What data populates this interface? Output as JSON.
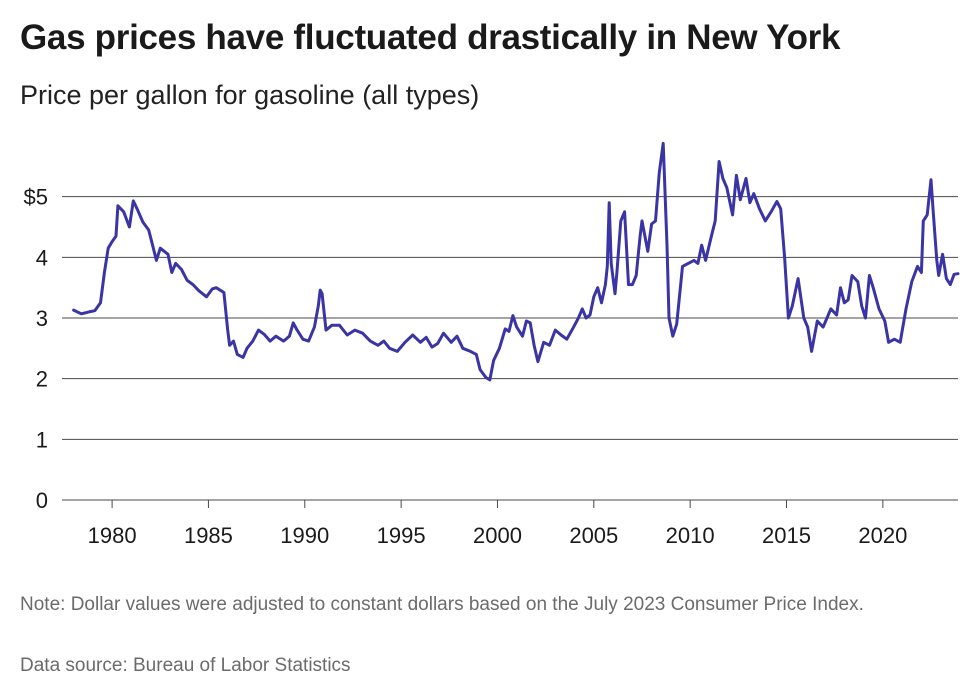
{
  "chart_data": {
    "type": "line",
    "title": "Gas prices have fluctuated drastically in New York",
    "subtitle": "Price per gallon for gasoline (all types)",
    "ylim": [
      0,
      6
    ],
    "xlim": [
      1977.4,
      2023.9
    ],
    "y_ticks": [
      {
        "value": 0,
        "label": "0"
      },
      {
        "value": 1,
        "label": "1"
      },
      {
        "value": 2,
        "label": "2"
      },
      {
        "value": 3,
        "label": "3"
      },
      {
        "value": 4,
        "label": "4"
      },
      {
        "value": 5,
        "label": "$5"
      }
    ],
    "x_ticks": [
      {
        "value": 1980,
        "label": "1980"
      },
      {
        "value": 1985,
        "label": "1985"
      },
      {
        "value": 1990,
        "label": "1990"
      },
      {
        "value": 1995,
        "label": "1995"
      },
      {
        "value": 2000,
        "label": "2000"
      },
      {
        "value": 2005,
        "label": "2005"
      },
      {
        "value": 2010,
        "label": "2010"
      },
      {
        "value": 2015,
        "label": "2015"
      },
      {
        "value": 2020,
        "label": "2020"
      }
    ],
    "grid": true,
    "legend": "none",
    "line_color": "#3a34a5",
    "series": [
      {
        "values": [
          [
            1978.0,
            3.13
          ],
          [
            1978.4,
            3.07
          ],
          [
            1978.8,
            3.1
          ],
          [
            1979.1,
            3.12
          ],
          [
            1979.4,
            3.25
          ],
          [
            1979.6,
            3.75
          ],
          [
            1979.8,
            4.15
          ],
          [
            1980.0,
            4.26
          ],
          [
            1980.2,
            4.35
          ],
          [
            1980.3,
            4.85
          ],
          [
            1980.6,
            4.75
          ],
          [
            1980.9,
            4.5
          ],
          [
            1981.1,
            4.93
          ],
          [
            1981.3,
            4.8
          ],
          [
            1981.6,
            4.58
          ],
          [
            1981.9,
            4.45
          ],
          [
            1982.1,
            4.2
          ],
          [
            1982.3,
            3.95
          ],
          [
            1982.5,
            4.15
          ],
          [
            1982.9,
            4.05
          ],
          [
            1983.1,
            3.75
          ],
          [
            1983.3,
            3.9
          ],
          [
            1983.6,
            3.8
          ],
          [
            1983.9,
            3.62
          ],
          [
            1984.2,
            3.55
          ],
          [
            1984.5,
            3.45
          ],
          [
            1984.9,
            3.35
          ],
          [
            1985.2,
            3.48
          ],
          [
            1985.4,
            3.5
          ],
          [
            1985.8,
            3.42
          ],
          [
            1986.0,
            2.8
          ],
          [
            1986.1,
            2.55
          ],
          [
            1986.3,
            2.62
          ],
          [
            1986.5,
            2.4
          ],
          [
            1986.8,
            2.35
          ],
          [
            1987.0,
            2.5
          ],
          [
            1987.3,
            2.62
          ],
          [
            1987.6,
            2.8
          ],
          [
            1987.9,
            2.73
          ],
          [
            1988.2,
            2.62
          ],
          [
            1988.5,
            2.7
          ],
          [
            1988.9,
            2.62
          ],
          [
            1989.2,
            2.7
          ],
          [
            1989.4,
            2.92
          ],
          [
            1989.6,
            2.8
          ],
          [
            1989.9,
            2.65
          ],
          [
            1990.2,
            2.62
          ],
          [
            1990.5,
            2.85
          ],
          [
            1990.7,
            3.2
          ],
          [
            1990.8,
            3.46
          ],
          [
            1990.9,
            3.4
          ],
          [
            1991.1,
            2.8
          ],
          [
            1991.4,
            2.88
          ],
          [
            1991.8,
            2.88
          ],
          [
            1992.2,
            2.72
          ],
          [
            1992.6,
            2.8
          ],
          [
            1993.0,
            2.75
          ],
          [
            1993.4,
            2.62
          ],
          [
            1993.8,
            2.55
          ],
          [
            1994.1,
            2.62
          ],
          [
            1994.4,
            2.5
          ],
          [
            1994.8,
            2.45
          ],
          [
            1995.2,
            2.6
          ],
          [
            1995.6,
            2.72
          ],
          [
            1996.0,
            2.6
          ],
          [
            1996.3,
            2.68
          ],
          [
            1996.6,
            2.52
          ],
          [
            1996.9,
            2.58
          ],
          [
            1997.2,
            2.75
          ],
          [
            1997.6,
            2.6
          ],
          [
            1997.9,
            2.7
          ],
          [
            1998.2,
            2.5
          ],
          [
            1998.6,
            2.45
          ],
          [
            1998.9,
            2.4
          ],
          [
            1999.1,
            2.15
          ],
          [
            1999.4,
            2.02
          ],
          [
            1999.6,
            1.98
          ],
          [
            1999.8,
            2.3
          ],
          [
            2000.1,
            2.5
          ],
          [
            2000.4,
            2.82
          ],
          [
            2000.6,
            2.78
          ],
          [
            2000.8,
            3.04
          ],
          [
            2001.0,
            2.85
          ],
          [
            2001.3,
            2.7
          ],
          [
            2001.5,
            2.95
          ],
          [
            2001.7,
            2.92
          ],
          [
            2001.9,
            2.55
          ],
          [
            2002.1,
            2.28
          ],
          [
            2002.4,
            2.6
          ],
          [
            2002.7,
            2.55
          ],
          [
            2003.0,
            2.8
          ],
          [
            2003.3,
            2.72
          ],
          [
            2003.6,
            2.65
          ],
          [
            2003.9,
            2.82
          ],
          [
            2004.2,
            3.0
          ],
          [
            2004.4,
            3.15
          ],
          [
            2004.6,
            3.0
          ],
          [
            2004.8,
            3.05
          ],
          [
            2005.0,
            3.35
          ],
          [
            2005.2,
            3.5
          ],
          [
            2005.4,
            3.25
          ],
          [
            2005.6,
            3.55
          ],
          [
            2005.7,
            3.85
          ],
          [
            2005.8,
            4.9
          ],
          [
            2005.9,
            3.9
          ],
          [
            2006.1,
            3.4
          ],
          [
            2006.2,
            3.75
          ],
          [
            2006.4,
            4.6
          ],
          [
            2006.6,
            4.75
          ],
          [
            2006.8,
            3.55
          ],
          [
            2007.0,
            3.55
          ],
          [
            2007.2,
            3.7
          ],
          [
            2007.4,
            4.35
          ],
          [
            2007.5,
            4.6
          ],
          [
            2007.8,
            4.1
          ],
          [
            2008.0,
            4.55
          ],
          [
            2008.2,
            4.6
          ],
          [
            2008.4,
            5.4
          ],
          [
            2008.6,
            5.88
          ],
          [
            2008.8,
            4.2
          ],
          [
            2008.9,
            3.0
          ],
          [
            2009.1,
            2.7
          ],
          [
            2009.3,
            2.9
          ],
          [
            2009.6,
            3.85
          ],
          [
            2009.9,
            3.9
          ],
          [
            2010.2,
            3.95
          ],
          [
            2010.4,
            3.9
          ],
          [
            2010.6,
            4.2
          ],
          [
            2010.8,
            3.95
          ],
          [
            2011.1,
            4.35
          ],
          [
            2011.3,
            4.6
          ],
          [
            2011.5,
            5.58
          ],
          [
            2011.7,
            5.3
          ],
          [
            2011.9,
            5.15
          ],
          [
            2012.2,
            4.7
          ],
          [
            2012.4,
            5.35
          ],
          [
            2012.6,
            4.95
          ],
          [
            2012.9,
            5.3
          ],
          [
            2013.1,
            4.9
          ],
          [
            2013.3,
            5.05
          ],
          [
            2013.6,
            4.8
          ],
          [
            2013.9,
            4.6
          ],
          [
            2014.2,
            4.75
          ],
          [
            2014.5,
            4.92
          ],
          [
            2014.7,
            4.8
          ],
          [
            2014.9,
            4.0
          ],
          [
            2015.1,
            3.0
          ],
          [
            2015.3,
            3.2
          ],
          [
            2015.6,
            3.65
          ],
          [
            2015.9,
            3.0
          ],
          [
            2016.1,
            2.85
          ],
          [
            2016.3,
            2.45
          ],
          [
            2016.6,
            2.95
          ],
          [
            2016.9,
            2.85
          ],
          [
            2017.1,
            3.0
          ],
          [
            2017.3,
            3.15
          ],
          [
            2017.6,
            3.05
          ],
          [
            2017.8,
            3.5
          ],
          [
            2018.0,
            3.25
          ],
          [
            2018.2,
            3.3
          ],
          [
            2018.4,
            3.7
          ],
          [
            2018.7,
            3.6
          ],
          [
            2018.9,
            3.2
          ],
          [
            2019.1,
            3.0
          ],
          [
            2019.3,
            3.7
          ],
          [
            2019.5,
            3.5
          ],
          [
            2019.8,
            3.15
          ],
          [
            2020.1,
            2.95
          ],
          [
            2020.3,
            2.6
          ],
          [
            2020.6,
            2.65
          ],
          [
            2020.9,
            2.6
          ],
          [
            2021.2,
            3.15
          ],
          [
            2021.5,
            3.6
          ],
          [
            2021.8,
            3.85
          ],
          [
            2022.0,
            3.75
          ],
          [
            2022.1,
            4.6
          ],
          [
            2022.3,
            4.7
          ],
          [
            2022.5,
            5.28
          ],
          [
            2022.6,
            4.8
          ],
          [
            2022.8,
            3.95
          ],
          [
            2022.9,
            3.7
          ],
          [
            2023.1,
            4.05
          ],
          [
            2023.3,
            3.65
          ],
          [
            2023.5,
            3.55
          ],
          [
            2023.7,
            3.72
          ],
          [
            2023.9,
            3.73
          ]
        ]
      }
    ]
  },
  "footer": {
    "note": "Note: Dollar values were adjusted to constant dollars based on the July 2023 Consumer Price Index.",
    "source": "Data source: Bureau of Labor Statistics"
  }
}
